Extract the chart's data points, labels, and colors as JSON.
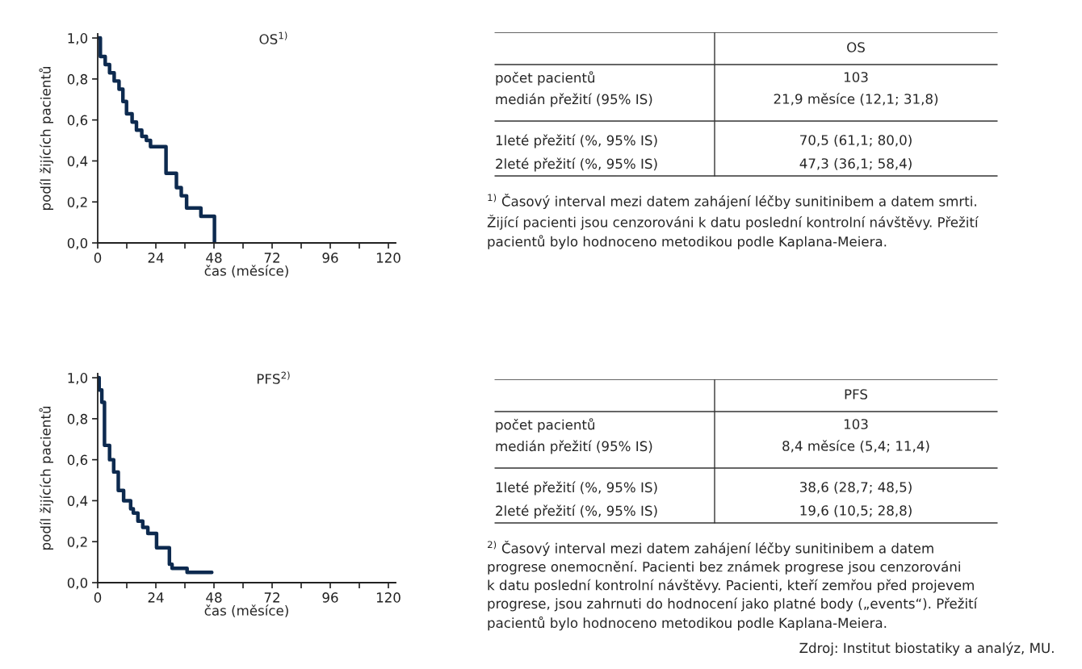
{
  "chart_data": [
    {
      "type": "step",
      "title": "OS$^{1)}$",
      "xlabel": "čas (měsíce)",
      "ylabel": "podíl žijících pacientů",
      "color": "#0d2a4f",
      "x": [
        0,
        1.1,
        3.1,
        4.9,
        6.8,
        8.8,
        10.4,
        11.9,
        14.2,
        16.0,
        18.2,
        20.1,
        21.8,
        28.2,
        32.5,
        34.5,
        36.7,
        42.6,
        48.2
      ],
      "values": [
        1.0,
        0.91,
        0.87,
        0.83,
        0.79,
        0.75,
        0.69,
        0.63,
        0.59,
        0.55,
        0.52,
        0.5,
        0.47,
        0.34,
        0.27,
        0.23,
        0.17,
        0.13,
        0.0
      ],
      "xlim": [
        0,
        123
      ],
      "ylim": [
        0,
        1.02
      ],
      "xticks": [
        0,
        {
          "value": 12,
          "label": null
        },
        24,
        {
          "value": 36,
          "label": null
        },
        48,
        {
          "value": 60,
          "label": null
        },
        72,
        {
          "value": 84,
          "label": null
        },
        96,
        {
          "value": 108,
          "label": null
        },
        120
      ],
      "yticks": [
        {
          "value": 0,
          "label": "0,0"
        },
        {
          "value": 0.2,
          "label": "0,2"
        },
        {
          "value": 0.4,
          "label": "0,4"
        },
        {
          "value": 0.6,
          "label": "0,6"
        },
        {
          "value": 0.8,
          "label": "0,8"
        },
        {
          "value": 1.0,
          "label": "1,0"
        }
      ],
      "grid": false,
      "legend": false
    },
    {
      "type": "other",
      "title": "OS",
      "annotations": [
        "počet pacientů",
        "103",
        "medián přežití (95% IS)",
        "21,9 měsíce (12,1; 31,8)",
        "1leté přežití (%, 95% IS)",
        "70,5 (61,1; 80,0)",
        "2leté přežití (%, 95% IS)",
        "47,3 (36,1; 58,4)"
      ],
      "subtitle": "$^{1)}$ Časový interval mezi datem zahájení léčby sunitinibem a datem smrti.\nŽijící pacienti jsou cenzorováni k datu poslední kontrolní návštěvy. Přežití\npacientů bylo hodnoceno metodikou podle Kaplana-Meiera."
    },
    {
      "type": "step",
      "title": "PFS$^{2)}$",
      "xlabel": "čas (měsíce)",
      "ylabel": "podíl žijících pacientů",
      "color": "#0d2a4f",
      "x": [
        0,
        0.6,
        1.7,
        2.8,
        4.9,
        6.6,
        8.5,
        10.7,
        13.6,
        14.7,
        16.6,
        18.6,
        20.7,
        24.3,
        29.6,
        30.7,
        36.9,
        47.1
      ],
      "values": [
        1.0,
        0.94,
        0.88,
        0.67,
        0.6,
        0.54,
        0.45,
        0.4,
        0.36,
        0.34,
        0.3,
        0.27,
        0.24,
        0.17,
        0.09,
        0.07,
        0.05,
        0.05
      ],
      "xlim": [
        0,
        123
      ],
      "ylim": [
        0,
        1.02
      ],
      "xticks": [
        0,
        {
          "value": 12,
          "label": null
        },
        24,
        {
          "value": 36,
          "label": null
        },
        48,
        {
          "value": 60,
          "label": null
        },
        72,
        {
          "value": 84,
          "label": null
        },
        96,
        {
          "value": 108,
          "label": null
        },
        120
      ],
      "yticks": [
        {
          "value": 0,
          "label": "0,0"
        },
        {
          "value": 0.2,
          "label": "0,2"
        },
        {
          "value": 0.4,
          "label": "0,4"
        },
        {
          "value": 0.6,
          "label": "0,6"
        },
        {
          "value": 0.8,
          "label": "0,8"
        },
        {
          "value": 1.0,
          "label": "1,0"
        }
      ],
      "grid": false,
      "legend": false,
      "annotations": [
        "Zdroj: Institut biostatiky a analýz, MU."
      ]
    },
    {
      "type": "other",
      "title": "PFS",
      "annotations": [
        "počet pacientů",
        "103",
        "medián přežití (95% IS)",
        "8,4 měsíce (5,4; 11,4)",
        "1leté přežití (%, 95% IS)",
        "38,6 (28,7; 48,5)",
        "2leté přežití (%, 95% IS)",
        "19,6 (10,5; 28,8)"
      ],
      "subtitle": "$^{2)}$ Časový interval mezi datem zahájení léčby sunitinibem a datem\nprogrese onemocnění. Pacienti bez známek progrese jsou cenzorováni\nk datu poslední kontrolní návštěvy. Pacienti, kteří zemřou před projevem\nprogrese, jsou zahrnuti do hodnocení jako platné body („events“). Přežití\npacientů bylo hodnoceno metodikou podle Kaplana-Meiera."
    }
  ]
}
